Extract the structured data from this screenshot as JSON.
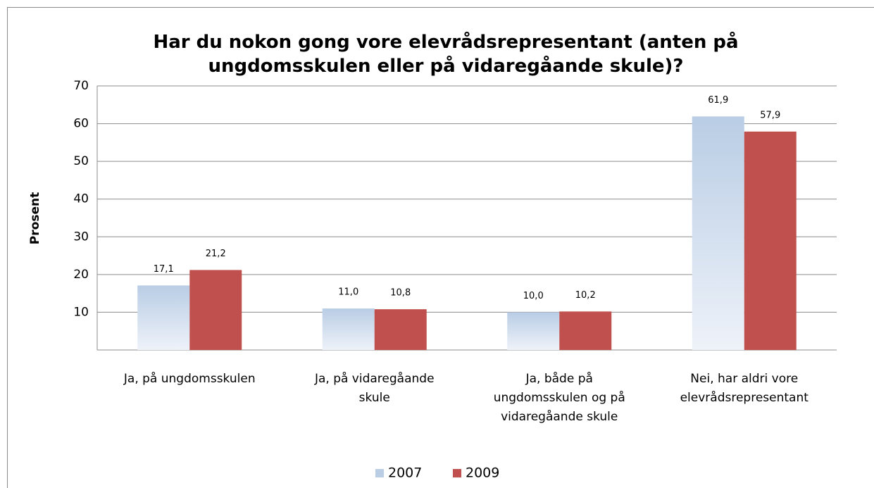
{
  "chart_data": {
    "type": "bar",
    "title": "Har du nokon gong vore elevrådsrepresentant (anten på ungdomsskulen eller på vidaregåande skule)?",
    "y_label": "Prosent",
    "categories": [
      "Ja, på ungdomsskulen",
      "Ja, på vidaregåande skule",
      "Ja, både på ungdomsskulen og på vidaregåande skule",
      "Nei, har aldri vore elevrådsrepresentant"
    ],
    "series": [
      {
        "name": "2007",
        "color": "#b9cde5",
        "values": [
          17.1,
          11.0,
          10.0,
          61.9
        ],
        "value_labels": [
          "17,1",
          "11,0",
          "10,0",
          "61,9"
        ]
      },
      {
        "name": "2009",
        "color": "#c0504d",
        "values": [
          21.2,
          10.8,
          10.2,
          57.9
        ],
        "value_labels": [
          "21,2",
          "10,8",
          "10,2",
          "57,9"
        ]
      }
    ],
    "ylim": [
      0,
      70
    ],
    "yticks": [
      10,
      20,
      30,
      40,
      50,
      60,
      70
    ],
    "grid": true,
    "legend": "bottom"
  }
}
